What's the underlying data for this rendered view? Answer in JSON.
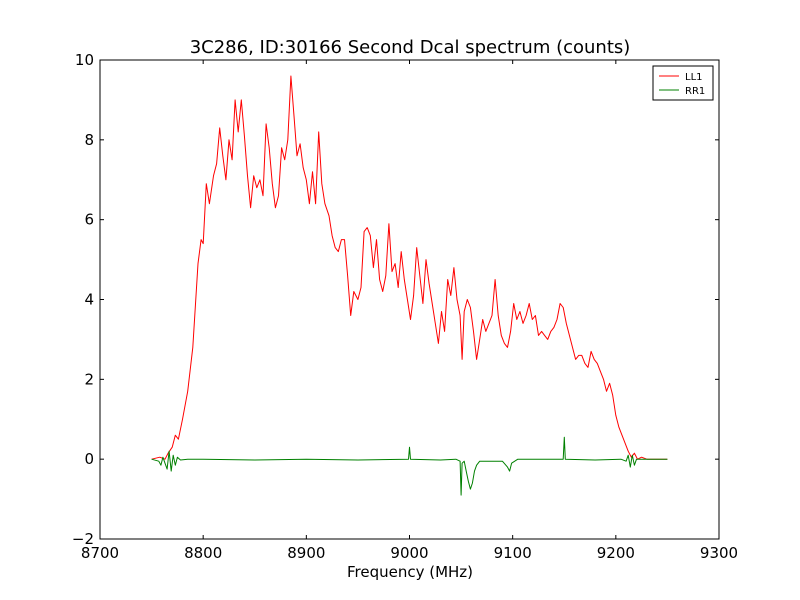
{
  "chart_data": {
    "type": "line",
    "title": "3C286, ID:30166 Second Dcal spectrum (counts)",
    "xlabel": "Frequency (MHz)",
    "ylabel": "",
    "xlim": [
      8700,
      9300
    ],
    "ylim": [
      -2,
      10
    ],
    "x_ticks": [
      8700,
      8800,
      8900,
      9000,
      9100,
      9200,
      9300
    ],
    "y_ticks": [
      -2,
      0,
      2,
      4,
      6,
      8,
      10
    ],
    "x_tick_labels": [
      "8700",
      "8800",
      "8900",
      "9000",
      "9100",
      "9200",
      "9300"
    ],
    "y_tick_labels": [
      "−2",
      "0",
      "2",
      "4",
      "6",
      "8",
      "10"
    ],
    "grid": false,
    "legend_position": "top-right",
    "series": [
      {
        "name": "LL1",
        "color": "#ff0000",
        "points": [
          [
            8750,
            0.0
          ],
          [
            8758,
            0.05
          ],
          [
            8763,
            0.0
          ],
          [
            8766,
            0.15
          ],
          [
            8770,
            0.3
          ],
          [
            8773,
            0.6
          ],
          [
            8776,
            0.5
          ],
          [
            8780,
            1.0
          ],
          [
            8785,
            1.7
          ],
          [
            8790,
            2.8
          ],
          [
            8795,
            4.9
          ],
          [
            8798,
            5.5
          ],
          [
            8800,
            5.4
          ],
          [
            8803,
            6.9
          ],
          [
            8806,
            6.4
          ],
          [
            8810,
            7.1
          ],
          [
            8813,
            7.4
          ],
          [
            8816,
            8.3
          ],
          [
            8819,
            7.6
          ],
          [
            8822,
            7.0
          ],
          [
            8825,
            8.0
          ],
          [
            8828,
            7.5
          ],
          [
            8831,
            9.0
          ],
          [
            8834,
            8.2
          ],
          [
            8837,
            9.0
          ],
          [
            8840,
            8.1
          ],
          [
            8843,
            7.1
          ],
          [
            8846,
            6.3
          ],
          [
            8849,
            7.1
          ],
          [
            8852,
            6.8
          ],
          [
            8855,
            7.0
          ],
          [
            8858,
            6.6
          ],
          [
            8861,
            8.4
          ],
          [
            8864,
            7.8
          ],
          [
            8867,
            6.9
          ],
          [
            8870,
            6.3
          ],
          [
            8873,
            6.6
          ],
          [
            8876,
            7.8
          ],
          [
            8879,
            7.5
          ],
          [
            8882,
            8.0
          ],
          [
            8885,
            9.6
          ],
          [
            8888,
            8.6
          ],
          [
            8891,
            7.6
          ],
          [
            8894,
            7.9
          ],
          [
            8897,
            7.3
          ],
          [
            8900,
            7.0
          ],
          [
            8903,
            6.4
          ],
          [
            8906,
            7.2
          ],
          [
            8909,
            6.4
          ],
          [
            8912,
            8.2
          ],
          [
            8915,
            6.9
          ],
          [
            8918,
            6.4
          ],
          [
            8922,
            6.1
          ],
          [
            8925,
            5.6
          ],
          [
            8928,
            5.3
          ],
          [
            8931,
            5.2
          ],
          [
            8934,
            5.5
          ],
          [
            8937,
            5.5
          ],
          [
            8940,
            4.6
          ],
          [
            8943,
            3.6
          ],
          [
            8946,
            4.2
          ],
          [
            8950,
            4.0
          ],
          [
            8953,
            4.3
          ],
          [
            8956,
            5.7
          ],
          [
            8959,
            5.8
          ],
          [
            8962,
            5.6
          ],
          [
            8965,
            4.8
          ],
          [
            8968,
            5.5
          ],
          [
            8971,
            4.5
          ],
          [
            8974,
            4.2
          ],
          [
            8977,
            4.6
          ],
          [
            8980,
            5.9
          ],
          [
            8983,
            4.7
          ],
          [
            8986,
            4.9
          ],
          [
            8989,
            4.3
          ],
          [
            8992,
            5.2
          ],
          [
            8995,
            4.5
          ],
          [
            8998,
            4.0
          ],
          [
            9001,
            3.5
          ],
          [
            9004,
            4.1
          ],
          [
            9007,
            5.3
          ],
          [
            9010,
            4.6
          ],
          [
            9013,
            3.9
          ],
          [
            9016,
            5.0
          ],
          [
            9019,
            4.4
          ],
          [
            9022,
            3.9
          ],
          [
            9025,
            3.4
          ],
          [
            9028,
            2.9
          ],
          [
            9031,
            3.7
          ],
          [
            9034,
            3.2
          ],
          [
            9037,
            4.5
          ],
          [
            9040,
            4.1
          ],
          [
            9043,
            4.8
          ],
          [
            9046,
            4.0
          ],
          [
            9049,
            3.6
          ],
          [
            9051,
            2.5
          ],
          [
            9053,
            3.7
          ],
          [
            9056,
            4.0
          ],
          [
            9059,
            3.8
          ],
          [
            9062,
            3.2
          ],
          [
            9065,
            2.5
          ],
          [
            9068,
            3.0
          ],
          [
            9071,
            3.5
          ],
          [
            9074,
            3.2
          ],
          [
            9077,
            3.4
          ],
          [
            9080,
            3.6
          ],
          [
            9083,
            4.5
          ],
          [
            9086,
            3.6
          ],
          [
            9089,
            3.1
          ],
          [
            9092,
            2.9
          ],
          [
            9095,
            2.8
          ],
          [
            9098,
            3.2
          ],
          [
            9101,
            3.9
          ],
          [
            9104,
            3.5
          ],
          [
            9107,
            3.7
          ],
          [
            9110,
            3.4
          ],
          [
            9113,
            3.6
          ],
          [
            9116,
            3.9
          ],
          [
            9119,
            3.5
          ],
          [
            9122,
            3.6
          ],
          [
            9125,
            3.1
          ],
          [
            9128,
            3.2
          ],
          [
            9131,
            3.1
          ],
          [
            9134,
            3.0
          ],
          [
            9137,
            3.2
          ],
          [
            9140,
            3.3
          ],
          [
            9143,
            3.5
          ],
          [
            9146,
            3.9
          ],
          [
            9149,
            3.8
          ],
          [
            9152,
            3.4
          ],
          [
            9155,
            3.1
          ],
          [
            9158,
            2.8
          ],
          [
            9161,
            2.5
          ],
          [
            9164,
            2.6
          ],
          [
            9167,
            2.6
          ],
          [
            9170,
            2.4
          ],
          [
            9173,
            2.3
          ],
          [
            9176,
            2.7
          ],
          [
            9179,
            2.5
          ],
          [
            9182,
            2.4
          ],
          [
            9185,
            2.2
          ],
          [
            9188,
            2.0
          ],
          [
            9191,
            1.7
          ],
          [
            9194,
            1.9
          ],
          [
            9197,
            1.6
          ],
          [
            9200,
            1.1
          ],
          [
            9203,
            0.8
          ],
          [
            9206,
            0.6
          ],
          [
            9209,
            0.4
          ],
          [
            9212,
            0.2
          ],
          [
            9215,
            0.05
          ],
          [
            9218,
            0.15
          ],
          [
            9221,
            0.0
          ],
          [
            9225,
            0.05
          ],
          [
            9230,
            0.0
          ],
          [
            9240,
            0.0
          ],
          [
            9250,
            0.0
          ]
        ]
      },
      {
        "name": "RR1",
        "color": "#008000",
        "points": [
          [
            8750,
            0.0
          ],
          [
            8757,
            -0.05
          ],
          [
            8759,
            -0.15
          ],
          [
            8761,
            0.05
          ],
          [
            8763,
            -0.1
          ],
          [
            8765,
            -0.25
          ],
          [
            8767,
            0.2
          ],
          [
            8769,
            -0.3
          ],
          [
            8771,
            0.1
          ],
          [
            8773,
            -0.15
          ],
          [
            8775,
            0.05
          ],
          [
            8778,
            -0.02
          ],
          [
            8785,
            0.0
          ],
          [
            8800,
            0.0
          ],
          [
            8850,
            -0.02
          ],
          [
            8900,
            0.0
          ],
          [
            8950,
            -0.02
          ],
          [
            8999,
            0.0
          ],
          [
            9000,
            0.3
          ],
          [
            9001,
            0.0
          ],
          [
            9030,
            -0.02
          ],
          [
            9045,
            0.0
          ],
          [
            9049,
            -0.05
          ],
          [
            9050,
            -0.9
          ],
          [
            9051,
            -0.1
          ],
          [
            9053,
            -0.05
          ],
          [
            9055,
            -0.3
          ],
          [
            9057,
            -0.55
          ],
          [
            9059,
            -0.75
          ],
          [
            9061,
            -0.6
          ],
          [
            9063,
            -0.3
          ],
          [
            9065,
            -0.15
          ],
          [
            9068,
            -0.05
          ],
          [
            9075,
            -0.05
          ],
          [
            9090,
            -0.05
          ],
          [
            9095,
            -0.2
          ],
          [
            9097,
            -0.3
          ],
          [
            9099,
            -0.1
          ],
          [
            9105,
            0.0
          ],
          [
            9149,
            0.0
          ],
          [
            9150,
            0.55
          ],
          [
            9151,
            0.0
          ],
          [
            9180,
            -0.02
          ],
          [
            9205,
            0.0
          ],
          [
            9210,
            -0.05
          ],
          [
            9212,
            0.1
          ],
          [
            9214,
            -0.2
          ],
          [
            9216,
            0.1
          ],
          [
            9218,
            -0.15
          ],
          [
            9220,
            0.0
          ],
          [
            9225,
            0.0
          ],
          [
            9250,
            0.0
          ]
        ]
      }
    ]
  }
}
